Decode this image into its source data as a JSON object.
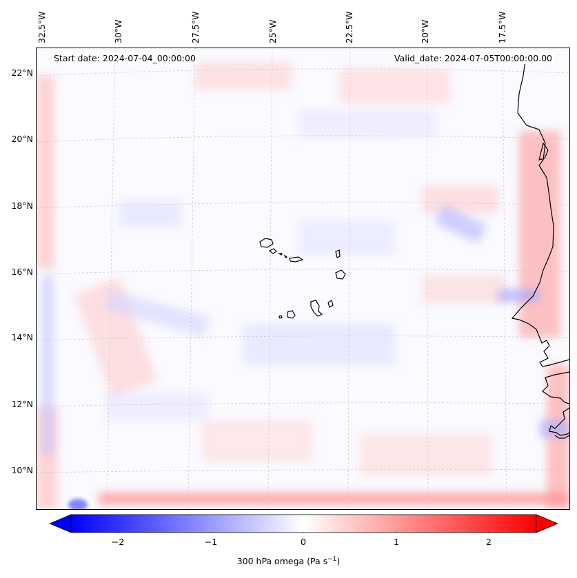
{
  "map": {
    "start_date": "Start date: 2024-07-04_00:00:00",
    "valid_date": "Valid_date: 2024-07-05T00:00:00.00",
    "lon_labels": [
      "32.5°W",
      "30°W",
      "27.5°W",
      "25°W",
      "22.5°W",
      "20°W",
      "17.5°W"
    ],
    "lat_labels": [
      "22°N",
      "20°N",
      "18°N",
      "16°N",
      "14°N",
      "12°N",
      "10°N"
    ],
    "land_features": [
      "cape-verde-islands",
      "west-africa-coastline"
    ]
  },
  "colorbar": {
    "label_main": "300 hPa omega (Pa s",
    "label_exp": "−1",
    "label_close": ")",
    "ticks": [
      "−2",
      "−1",
      "0",
      "1",
      "2"
    ],
    "tick_values": [
      -2,
      -1,
      0,
      1,
      2
    ],
    "range": [
      -2.5,
      2.5
    ],
    "extend": "both",
    "colormap": "bwr",
    "colors": {
      "negative": "#0000ff",
      "zero": "#ffffff",
      "positive": "#ff0000"
    }
  }
}
